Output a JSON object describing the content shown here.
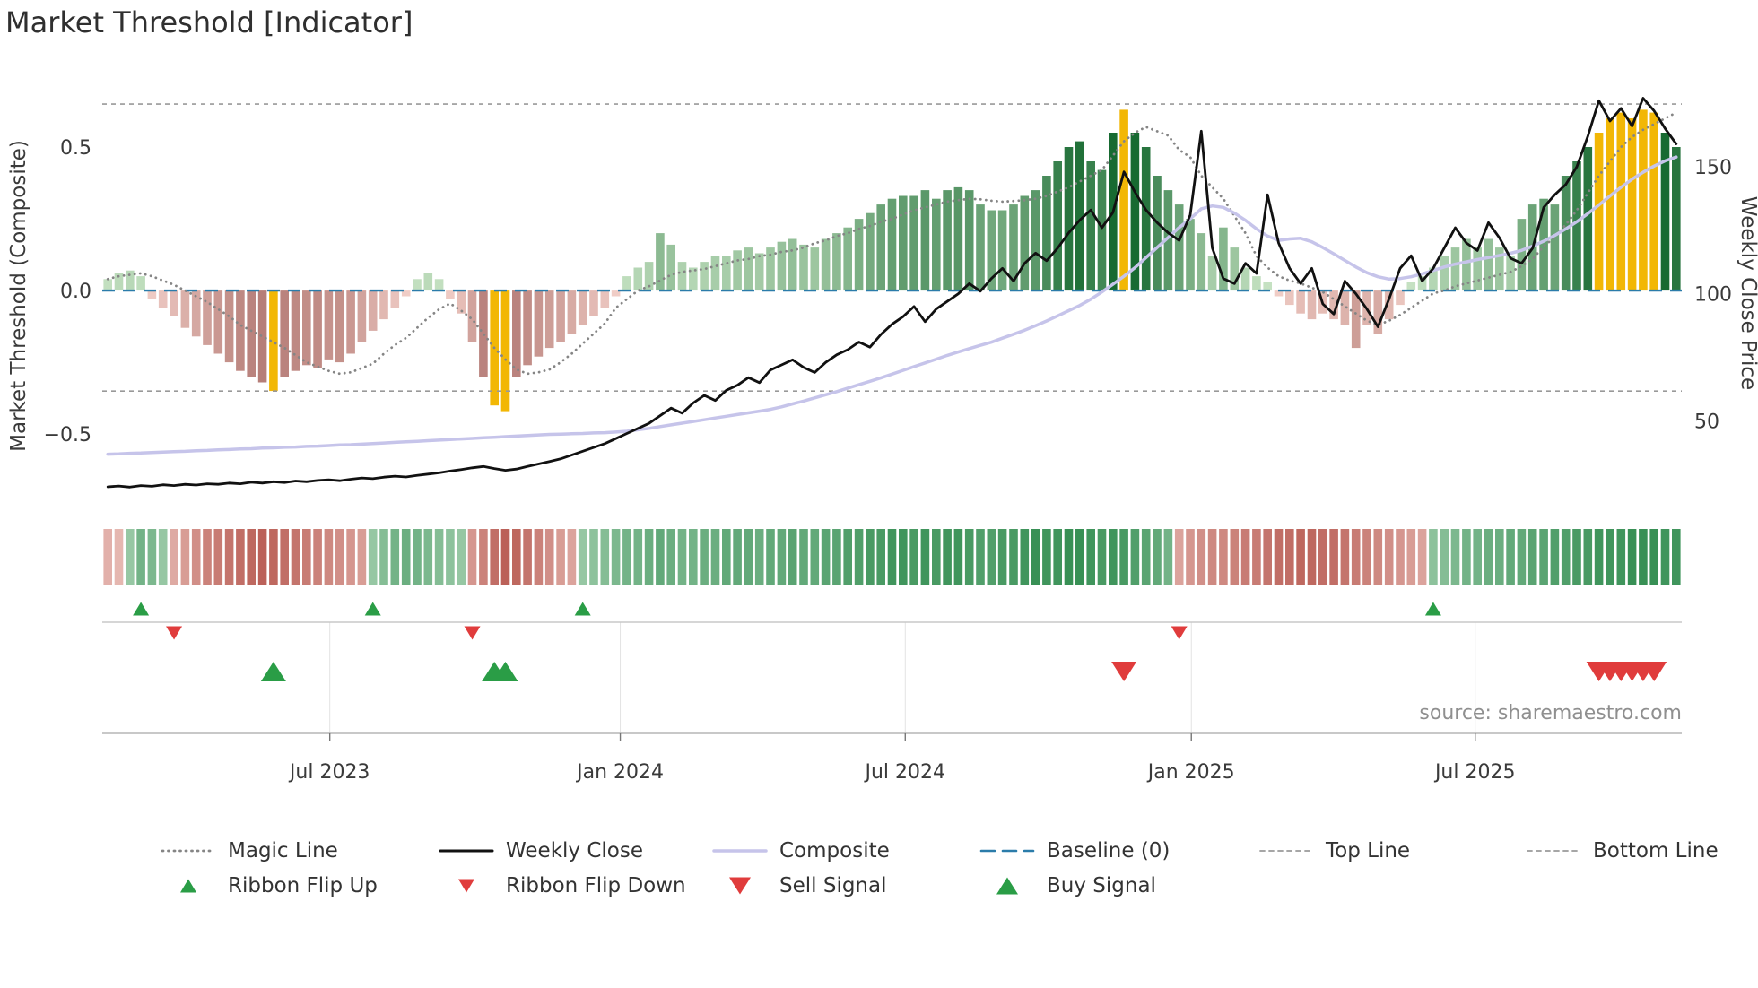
{
  "title": "Market Threshold [Indicator]",
  "chart_data": {
    "type": "combo (bar + line + signal ribbon + event markers)",
    "title": "Market Threshold [Indicator]",
    "x": {
      "unit": "week",
      "n_points": 143,
      "range": "Feb 2023 - Oct 2025",
      "ticks": [
        {
          "label": "Jul 2023",
          "week": 20.1
        },
        {
          "label": "Jan 2024",
          "week": 46.4
        },
        {
          "label": "Jul 2024",
          "week": 72.2
        },
        {
          "label": "Jan 2025",
          "week": 98.1
        },
        {
          "label": "Jul 2025",
          "week": 123.8
        }
      ]
    },
    "axes": {
      "left_label": "Market Threshold (Composite)",
      "right_label": "Weekly Close Price",
      "ylim_left": [
        -0.79,
        0.75
      ],
      "ylim_right": [
        12,
        186
      ],
      "left_ticks": [
        {
          "v": 0.5,
          "label": "0.5"
        },
        {
          "v": 0.0,
          "label": "0.0"
        },
        {
          "v": -0.5,
          "label": "−0.5"
        }
      ],
      "right_ticks": [
        {
          "v": 150,
          "label": "150"
        },
        {
          "v": 100,
          "label": "100"
        },
        {
          "v": 50,
          "label": "50"
        }
      ]
    },
    "reference_lines": {
      "baseline": 0,
      "top_line": 0.65,
      "bottom_line": -0.35
    },
    "series": {
      "threshold_bars": {
        "axis": "left",
        "signal_weeks": [
          15,
          35,
          36,
          92,
          135,
          136,
          137,
          138,
          139,
          140
        ],
        "values": [
          0.04,
          0.06,
          0.07,
          0.05,
          -0.03,
          -0.06,
          -0.09,
          -0.13,
          -0.16,
          -0.19,
          -0.22,
          -0.25,
          -0.28,
          -0.3,
          -0.32,
          -0.35,
          -0.3,
          -0.28,
          -0.26,
          -0.27,
          -0.24,
          -0.25,
          -0.22,
          -0.18,
          -0.14,
          -0.1,
          -0.06,
          -0.02,
          0.04,
          0.06,
          0.04,
          -0.03,
          -0.08,
          -0.18,
          -0.3,
          -0.4,
          -0.42,
          -0.3,
          -0.26,
          -0.23,
          -0.2,
          -0.18,
          -0.15,
          -0.12,
          -0.09,
          -0.06,
          -0.02,
          0.05,
          0.08,
          0.1,
          0.2,
          0.16,
          0.1,
          0.08,
          0.1,
          0.12,
          0.12,
          0.14,
          0.15,
          0.13,
          0.15,
          0.17,
          0.18,
          0.16,
          0.15,
          0.18,
          0.2,
          0.22,
          0.25,
          0.27,
          0.3,
          0.32,
          0.33,
          0.33,
          0.35,
          0.32,
          0.35,
          0.36,
          0.35,
          0.3,
          0.28,
          0.28,
          0.3,
          0.33,
          0.35,
          0.4,
          0.45,
          0.5,
          0.52,
          0.45,
          0.42,
          0.55,
          0.63,
          0.55,
          0.5,
          0.4,
          0.35,
          0.3,
          0.25,
          0.2,
          0.12,
          0.22,
          0.15,
          0.08,
          0.05,
          0.03,
          -0.02,
          -0.05,
          -0.08,
          -0.1,
          -0.08,
          -0.1,
          -0.12,
          -0.2,
          -0.12,
          -0.15,
          -0.1,
          -0.05,
          0.03,
          0.05,
          0.08,
          0.12,
          0.15,
          0.18,
          0.15,
          0.18,
          0.15,
          0.12,
          0.25,
          0.3,
          0.32,
          0.3,
          0.4,
          0.45,
          0.5,
          0.55,
          0.6,
          0.62,
          0.6,
          0.63,
          0.62,
          0.55,
          0.5
        ]
      },
      "weekly_close": {
        "axis": "right",
        "values": [
          24,
          24.3,
          23.9,
          24.5,
          24.2,
          24.8,
          24.5,
          25,
          24.7,
          25.2,
          25,
          25.5,
          25.2,
          25.8,
          25.5,
          26,
          25.7,
          26.3,
          26,
          26.5,
          26.8,
          26.4,
          27,
          27.5,
          27.2,
          27.8,
          28.2,
          27.9,
          28.5,
          29,
          29.5,
          30.2,
          30.8,
          31.5,
          32,
          31.2,
          30.5,
          31,
          32,
          33,
          34,
          35,
          36.5,
          38,
          39.5,
          41,
          43,
          45,
          47,
          49,
          52,
          55,
          53,
          57,
          60,
          58,
          62,
          64,
          67,
          65,
          70,
          72,
          74,
          71,
          69,
          73,
          76,
          78,
          81,
          79,
          84,
          88,
          91,
          95,
          89,
          94,
          97,
          100,
          104,
          101,
          106,
          110,
          105,
          112,
          116,
          113,
          118,
          124,
          129,
          133,
          126,
          132,
          148,
          140,
          133,
          128,
          124,
          121,
          131,
          164,
          118,
          106,
          104,
          112,
          108,
          139,
          120,
          110,
          104,
          110,
          96,
          92,
          105,
          100,
          94,
          87,
          98,
          110,
          115,
          105,
          110,
          118,
          126,
          120,
          117,
          128,
          122,
          114,
          112,
          118,
          134,
          139,
          143,
          150,
          162,
          176,
          168,
          173,
          166,
          177,
          172,
          165,
          159
        ]
      },
      "composite": {
        "axis": "left",
        "values": [
          -0.57,
          -0.569,
          -0.567,
          -0.566,
          -0.564,
          -0.563,
          -0.561,
          -0.56,
          -0.558,
          -0.557,
          -0.555,
          -0.554,
          -0.552,
          -0.551,
          -0.549,
          -0.548,
          -0.546,
          -0.545,
          -0.543,
          -0.542,
          -0.54,
          -0.538,
          -0.537,
          -0.535,
          -0.533,
          -0.531,
          -0.529,
          -0.527,
          -0.525,
          -0.523,
          -0.521,
          -0.519,
          -0.517,
          -0.515,
          -0.513,
          -0.511,
          -0.509,
          -0.507,
          -0.505,
          -0.503,
          -0.501,
          -0.5,
          -0.499,
          -0.498,
          -0.496,
          -0.495,
          -0.493,
          -0.49,
          -0.485,
          -0.48,
          -0.474,
          -0.468,
          -0.462,
          -0.456,
          -0.45,
          -0.444,
          -0.438,
          -0.432,
          -0.426,
          -0.42,
          -0.414,
          -0.405,
          -0.395,
          -0.385,
          -0.374,
          -0.363,
          -0.352,
          -0.34,
          -0.328,
          -0.316,
          -0.304,
          -0.291,
          -0.278,
          -0.265,
          -0.252,
          -0.239,
          -0.226,
          -0.214,
          -0.202,
          -0.191,
          -0.18,
          -0.166,
          -0.152,
          -0.138,
          -0.122,
          -0.106,
          -0.088,
          -0.07,
          -0.052,
          -0.03,
          -0.005,
          0.022,
          0.05,
          0.08,
          0.115,
          0.15,
          0.185,
          0.22,
          0.25,
          0.285,
          0.295,
          0.29,
          0.27,
          0.245,
          0.215,
          0.19,
          0.175,
          0.18,
          0.182,
          0.17,
          0.15,
          0.128,
          0.105,
          0.082,
          0.062,
          0.048,
          0.04,
          0.042,
          0.048,
          0.058,
          0.07,
          0.082,
          0.092,
          0.1,
          0.108,
          0.115,
          0.122,
          0.13,
          0.14,
          0.155,
          0.172,
          0.192,
          0.215,
          0.24,
          0.268,
          0.298,
          0.33,
          0.36,
          0.388,
          0.412,
          0.434,
          0.452,
          0.465
        ]
      },
      "magic_line": {
        "axis": "left",
        "values": [
          0.04,
          0.05,
          0.055,
          0.06,
          0.05,
          0.035,
          0.02,
          0,
          -0.02,
          -0.04,
          -0.065,
          -0.09,
          -0.12,
          -0.14,
          -0.16,
          -0.18,
          -0.2,
          -0.225,
          -0.25,
          -0.265,
          -0.28,
          -0.29,
          -0.285,
          -0.27,
          -0.255,
          -0.22,
          -0.19,
          -0.165,
          -0.13,
          -0.095,
          -0.065,
          -0.045,
          -0.07,
          -0.1,
          -0.15,
          -0.2,
          -0.24,
          -0.275,
          -0.29,
          -0.285,
          -0.275,
          -0.25,
          -0.22,
          -0.185,
          -0.15,
          -0.115,
          -0.06,
          -0.03,
          0,
          0.015,
          0.035,
          0.055,
          0.065,
          0.07,
          0.075,
          0.085,
          0.095,
          0.105,
          0.11,
          0.12,
          0.125,
          0.135,
          0.14,
          0.15,
          0.165,
          0.175,
          0.19,
          0.2,
          0.215,
          0.225,
          0.24,
          0.25,
          0.265,
          0.28,
          0.29,
          0.3,
          0.31,
          0.315,
          0.32,
          0.318,
          0.313,
          0.31,
          0.312,
          0.315,
          0.32,
          0.33,
          0.345,
          0.36,
          0.38,
          0.4,
          0.42,
          0.47,
          0.52,
          0.55,
          0.57,
          0.555,
          0.54,
          0.49,
          0.465,
          0.4,
          0.36,
          0.32,
          0.26,
          0.2,
          0.12,
          0.08,
          0.05,
          0.035,
          0.025,
          0.01,
          -0.005,
          -0.03,
          -0.055,
          -0.08,
          -0.105,
          -0.12,
          -0.105,
          -0.085,
          -0.06,
          -0.035,
          -0.01,
          0,
          0.015,
          0.025,
          0.035,
          0.045,
          0.055,
          0.065,
          0.085,
          0.11,
          0.155,
          0.185,
          0.23,
          0.28,
          0.34,
          0.4,
          0.45,
          0.5,
          0.535,
          0.56,
          0.58,
          0.6,
          0.62
        ]
      },
      "ribbon": {
        "description": "signed intensity strip, green positive / red negative",
        "values": [
          -0.3,
          -0.25,
          0.4,
          0.6,
          0.55,
          0.4,
          -0.35,
          -0.45,
          -0.55,
          -0.65,
          -0.7,
          -0.75,
          -0.8,
          -0.85,
          -0.9,
          -0.85,
          -0.8,
          -0.75,
          -0.7,
          -0.65,
          -0.6,
          -0.55,
          -0.5,
          -0.45,
          0.4,
          0.5,
          0.6,
          0.65,
          0.6,
          0.55,
          0.5,
          0.45,
          0.4,
          -0.5,
          -0.65,
          -0.8,
          -0.9,
          -0.85,
          -0.75,
          -0.65,
          -0.55,
          -0.45,
          -0.4,
          0.4,
          0.45,
          0.5,
          0.55,
          0.6,
          0.6,
          0.65,
          0.7,
          0.65,
          0.6,
          0.6,
          0.65,
          0.65,
          0.7,
          0.7,
          0.7,
          0.65,
          0.7,
          0.7,
          0.75,
          0.7,
          0.7,
          0.75,
          0.75,
          0.8,
          0.8,
          0.85,
          0.85,
          0.9,
          0.9,
          0.85,
          0.9,
          0.85,
          0.9,
          0.9,
          0.85,
          0.8,
          0.8,
          0.85,
          0.85,
          0.9,
          0.95,
          0.9,
          0.9,
          0.95,
          0.95,
          0.9,
          0.85,
          0.9,
          0.85,
          0.8,
          0.75,
          0.7,
          0.6,
          -0.4,
          -0.5,
          -0.55,
          -0.6,
          -0.6,
          -0.65,
          -0.7,
          -0.7,
          -0.75,
          -0.8,
          -0.8,
          -0.85,
          -0.85,
          -0.8,
          -0.8,
          -0.75,
          -0.7,
          -0.65,
          -0.6,
          -0.55,
          -0.5,
          -0.45,
          -0.4,
          0.45,
          0.5,
          0.55,
          0.6,
          0.6,
          0.65,
          0.65,
          0.7,
          0.7,
          0.75,
          0.75,
          0.8,
          0.8,
          0.85,
          0.85,
          0.9,
          0.9,
          0.9,
          0.95,
          0.95,
          0.95,
          0.9,
          0.9
        ]
      }
    },
    "markers": {
      "ribbon_flip_up_weeks": [
        3,
        24,
        43,
        120
      ],
      "ribbon_flip_down_weeks": [
        6,
        33,
        97
      ],
      "buy_signal_weeks": [
        15,
        35,
        36
      ],
      "sell_signal_weeks": [
        92,
        135,
        136,
        137,
        138,
        139,
        140
      ]
    },
    "annotations": {
      "source": "source: sharemaestro.com"
    },
    "legend": {
      "columns": [
        [
          {
            "label": "Magic Line",
            "swatch": "magic-line"
          },
          {
            "label": "Ribbon Flip Up",
            "swatch": "flip-up"
          }
        ],
        [
          {
            "label": "Weekly Close",
            "swatch": "weekly-close"
          },
          {
            "label": "Ribbon Flip Down",
            "swatch": "flip-down"
          }
        ],
        [
          {
            "label": "Composite",
            "swatch": "composite"
          },
          {
            "label": "Sell Signal",
            "swatch": "sell"
          }
        ],
        [
          {
            "label": "Baseline (0)",
            "swatch": "baseline"
          },
          {
            "label": "Buy Signal",
            "swatch": "buy"
          }
        ],
        [
          {
            "label": "Top Line",
            "swatch": "ref-line"
          }
        ],
        [
          {
            "label": "Bottom Line",
            "swatch": "ref-line"
          }
        ]
      ]
    }
  },
  "colors": {
    "bar_pos_light": "#cfe8ca",
    "bar_pos_dark": "#176a31",
    "bar_neg_light": "#f4d2cb",
    "bar_neg_dark": "#8a423d",
    "signal_bar": "#f2b705",
    "weekly_close": "#111111",
    "composite": "#c6c4ea",
    "magic_line": "#858585",
    "baseline": "#2b7caa",
    "ref_line": "#999999",
    "ribbon_pos_light": "#daefdc",
    "ribbon_pos_dark": "#2f8b4e",
    "ribbon_neg_light": "#f5d8d2",
    "ribbon_neg_dark": "#b4544b",
    "flip_up": "#2a9d46",
    "flip_down": "#e03c3c",
    "buy": "#2a9d46",
    "sell": "#e03c3c",
    "panel_line": "#c8c8c8",
    "panel_line_dark": "#b5b5b5",
    "gridline": "#e3e3e3",
    "tick_text": "#3a3a3a",
    "source_text": "#8f8f8f"
  }
}
